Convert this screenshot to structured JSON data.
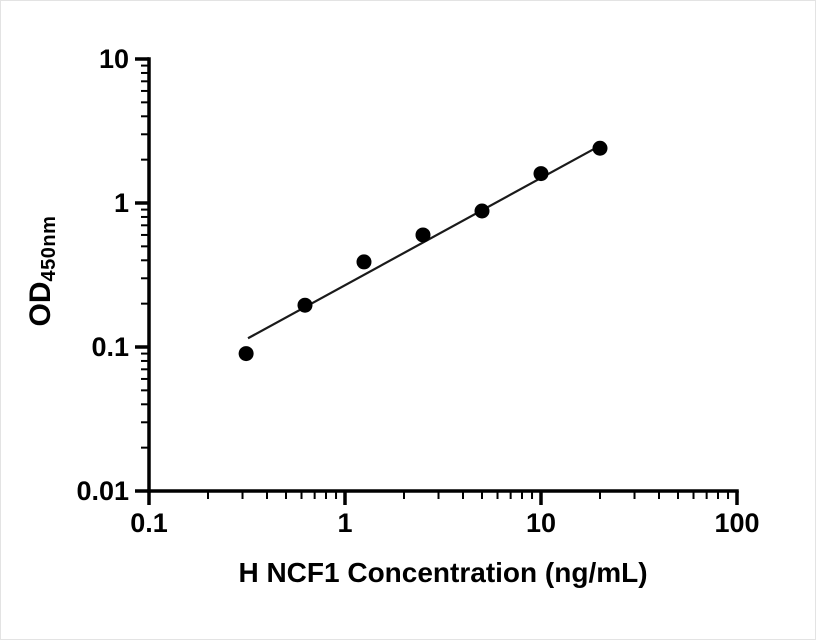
{
  "chart_data": {
    "type": "scatter",
    "title": "",
    "xlabel": "H NCF1 Concentration (ng/mL)",
    "ylabel_main": "OD",
    "ylabel_sub": "450nm",
    "x_scale": "log",
    "y_scale": "log",
    "xlim": [
      0.1,
      100
    ],
    "ylim": [
      0.01,
      10
    ],
    "x_ticks": [
      0.1,
      1,
      10,
      100
    ],
    "x_tick_labels": [
      "0.1",
      "1",
      "10",
      "100"
    ],
    "y_ticks": [
      0.01,
      0.1,
      1,
      10
    ],
    "y_tick_labels": [
      "0.01",
      "0.1",
      "1",
      "10"
    ],
    "grid": false,
    "legend": "none",
    "points": {
      "x": [
        0.313,
        0.625,
        1.25,
        2.5,
        5,
        10,
        20
      ],
      "y": [
        0.09,
        0.195,
        0.39,
        0.6,
        0.88,
        1.6,
        2.4
      ]
    },
    "fit_line": {
      "x": [
        0.32,
        20
      ],
      "y": [
        0.115,
        2.5
      ]
    },
    "marker_color": "#000000",
    "line_color": "#1a1a1a",
    "axis_color": "#000000"
  }
}
